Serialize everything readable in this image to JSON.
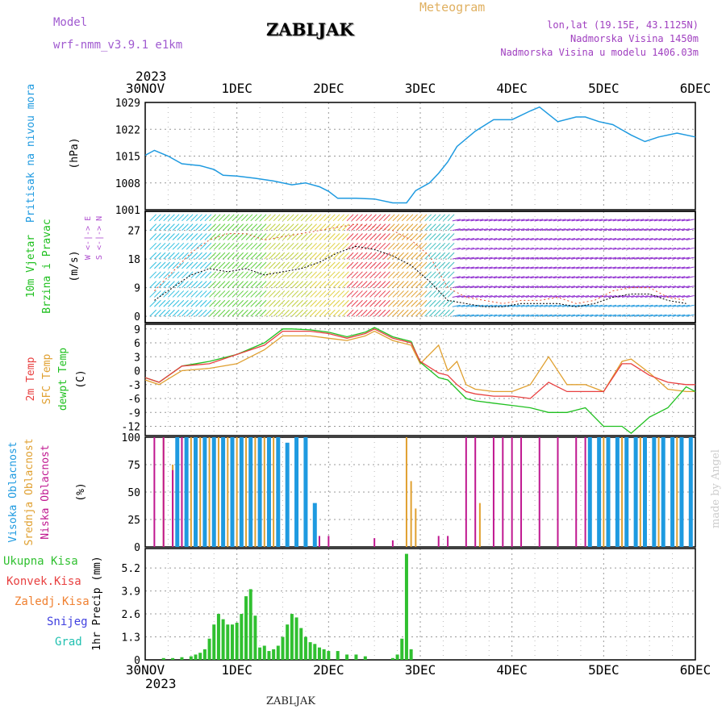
{
  "header": {
    "model_label": "Model",
    "model_version": "wrf-nmm_v3.9.1  e1km",
    "title": "ZABLJAK",
    "meteogram": "Meteogram",
    "lonlat": "lon,lat (19.15E, 43.1125N)",
    "elevation": "Nadmorska Visina 1450m",
    "model_elevation": "Nadmorska Visina u modelu 1406.03m"
  },
  "footer": {
    "station": "ZABLJAK",
    "credit": "made by Angel"
  },
  "time_axis": {
    "year": "2023",
    "labels": [
      "30NOV",
      "1DEC",
      "2DEC",
      "3DEC",
      "4DEC",
      "5DEC",
      "6DEC"
    ],
    "range_days": [
      0,
      6
    ]
  },
  "colors": {
    "pressure": "#1e9ae0",
    "temp_2m": "#e84040",
    "temp_sfc": "#e0a030",
    "dewpoint": "#20c020",
    "cloud_high": "#1e9ae0",
    "cloud_mid": "#e0a030",
    "cloud_low": "#c01890",
    "precip_total": "#30c030",
    "gust": "#e05030"
  },
  "panels": {
    "pressure": {
      "ylabel1": "Pritisak na nivou mora",
      "ylabel2": "(hPa)"
    },
    "wind": {
      "ylabel1": "10m Vjetar",
      "ylabel1b": "Brzina i Pravac",
      "ylabel2": "(m/s)",
      "compass": "W <-|-> E",
      "compass2": "S <-|-> N"
    },
    "temp": {
      "ylabel1": "2m Temp",
      "ylabel1b": "SFC Temp",
      "ylabel1c": "dewpt Temp",
      "ylabel2": "(C)"
    },
    "cloud": {
      "ylabel1": "Visoka Oblacnost",
      "ylabel1b": "Srednja Oblacnost",
      "ylabel1c": "Niska Oblacnost",
      "ylabel2": "(%)"
    },
    "precip": {
      "legend": [
        "Ukupna Kisa",
        "Konvek.Kisa",
        "Zaledj.Kisa",
        "Snijeg",
        "Grad"
      ],
      "ylabel2": "1hr Precip (mm)"
    }
  },
  "chart_data": [
    {
      "type": "line",
      "name": "pressure",
      "ylim": [
        1001,
        1029
      ],
      "yticks": [
        1001,
        1008,
        1015,
        1022,
        1029
      ],
      "x": [
        0,
        0.1,
        0.15,
        0.25,
        0.4,
        0.6,
        0.75,
        0.85,
        1.0,
        1.2,
        1.4,
        1.6,
        1.75,
        1.9,
        2.0,
        2.1,
        2.3,
        2.5,
        2.7,
        2.85,
        2.95,
        3.1,
        3.2,
        3.3,
        3.4,
        3.6,
        3.8,
        4.0,
        4.2,
        4.3,
        4.5,
        4.7,
        4.8,
        4.95,
        5.1,
        5.3,
        5.45,
        5.6,
        5.8,
        6.0
      ],
      "values": [
        1015.2,
        1016.5,
        1016.0,
        1015.0,
        1013.0,
        1012.5,
        1011.5,
        1010.0,
        1009.8,
        1009.2,
        1008.5,
        1007.5,
        1008.0,
        1007.0,
        1005.8,
        1004.0,
        1004.0,
        1003.8,
        1002.8,
        1002.8,
        1006.0,
        1008.0,
        1010.5,
        1013.5,
        1017.5,
        1021.5,
        1024.5,
        1024.5,
        1026.8,
        1027.8,
        1024.0,
        1025.2,
        1025.2,
        1024.0,
        1023.2,
        1020.5,
        1018.8,
        1020.0,
        1021.0,
        1020.0
      ]
    },
    {
      "type": "line",
      "name": "wind",
      "ylim": [
        -2,
        33
      ],
      "yticks": [
        0,
        9,
        18,
        27
      ],
      "series": [
        {
          "x": [
            0.1,
            0.3,
            0.5,
            0.7,
            0.9,
            1.1,
            1.3,
            1.5,
            1.7,
            1.9,
            2.1,
            2.3,
            2.5,
            2.7,
            2.9,
            3.1,
            3.3,
            3.5,
            3.7,
            3.9,
            4.1,
            4.3,
            4.5,
            4.7,
            4.9,
            5.1,
            5.3,
            5.5,
            5.7,
            5.9
          ],
          "values": [
            5,
            9,
            13,
            15,
            14,
            15,
            13,
            14,
            15,
            17,
            20,
            22,
            21,
            19,
            16,
            11,
            5,
            4,
            3,
            3,
            4,
            4,
            4,
            3,
            4,
            6,
            7,
            7,
            5,
            4
          ]
        },
        {
          "x": [
            0.1,
            0.3,
            0.5,
            0.7,
            0.9,
            1.1,
            1.3,
            1.5,
            1.7,
            1.9,
            2.1,
            2.3,
            2.5,
            2.7,
            2.9,
            3.1,
            3.3,
            3.5,
            3.7,
            3.9,
            4.1,
            4.3,
            4.5,
            4.7,
            4.9,
            5.1,
            5.3,
            5.5,
            5.7,
            5.9
          ],
          "values": [
            8,
            14,
            20,
            24,
            26,
            26,
            24,
            25,
            26,
            27,
            28,
            29,
            28,
            27,
            24,
            19,
            9,
            6,
            5,
            4,
            5,
            5,
            6,
            4,
            5,
            8,
            9,
            9,
            6,
            5
          ]
        }
      ]
    },
    {
      "type": "line",
      "name": "temperature",
      "ylim": [
        -14,
        10
      ],
      "yticks": [
        9,
        6,
        3,
        0,
        -3,
        -6,
        -9,
        -12
      ],
      "series": [
        {
          "x": [
            0,
            0.15,
            0.4,
            0.7,
            1.0,
            1.3,
            1.5,
            1.6,
            1.8,
            2.0,
            2.2,
            2.4,
            2.5,
            2.7,
            2.9,
            3.0,
            3.2,
            3.3,
            3.4,
            3.5,
            3.6,
            3.8,
            4.0,
            4.2,
            4.4,
            4.6,
            4.8,
            5.0,
            5.2,
            5.3,
            5.5,
            5.7,
            5.9,
            6.0
          ],
          "values": [
            -1.5,
            -2.5,
            1,
            1.5,
            3.5,
            5.5,
            8.5,
            8.5,
            8.5,
            8,
            7,
            8,
            9,
            7,
            6,
            2,
            -0.5,
            -1,
            -3,
            -4.5,
            -5,
            -5.5,
            -5.5,
            -6,
            -2.5,
            -4.5,
            -4.5,
            -4.5,
            1.5,
            1.5,
            -1,
            -2.5,
            -3,
            -3
          ]
        },
        {
          "x": [
            0,
            0.15,
            0.4,
            0.7,
            1.0,
            1.3,
            1.5,
            1.6,
            1.8,
            2.0,
            2.2,
            2.4,
            2.5,
            2.7,
            2.9,
            3.0,
            3.2,
            3.3,
            3.4,
            3.5,
            3.6,
            3.8,
            4.0,
            4.2,
            4.4,
            4.6,
            4.8,
            5.0,
            5.2,
            5.3,
            5.5,
            5.7,
            5.9,
            6.0
          ],
          "values": [
            -2,
            -3,
            0,
            0.5,
            1.5,
            4.5,
            7.5,
            7.5,
            7.5,
            7,
            6.5,
            7.5,
            8.5,
            6.5,
            5.5,
            1.5,
            5.5,
            0,
            2,
            -3,
            -4,
            -4.5,
            -4.5,
            -3,
            3,
            -3,
            -3,
            -4.5,
            2,
            2.5,
            -0.5,
            -4,
            -4.5,
            -4.5
          ]
        },
        {
          "x": [
            0,
            0.15,
            0.4,
            0.7,
            1.0,
            1.3,
            1.5,
            1.6,
            1.8,
            2.0,
            2.2,
            2.4,
            2.5,
            2.7,
            2.9,
            3.0,
            3.2,
            3.3,
            3.4,
            3.5,
            3.6,
            3.8,
            4.0,
            4.2,
            4.4,
            4.6,
            4.8,
            5.0,
            5.2,
            5.3,
            5.5,
            5.7,
            5.9,
            6.0
          ],
          "values": [
            -1.5,
            -2.5,
            1,
            2,
            3.5,
            6,
            9,
            9,
            8.8,
            8.3,
            7.3,
            8.3,
            9.3,
            7.3,
            6.3,
            1.8,
            -1.5,
            -2,
            -4,
            -6,
            -6.5,
            -7,
            -7.5,
            -8,
            -9,
            -9,
            -8,
            -12,
            -12,
            -13.5,
            -10,
            -8,
            -3.5,
            -4.5
          ]
        }
      ]
    },
    {
      "type": "bar",
      "name": "cloud",
      "ylim": [
        0,
        100
      ],
      "yticks": [
        0,
        25,
        50,
        75,
        100
      ],
      "series": [
        {
          "x": [
            0.35,
            0.45,
            0.55,
            0.65,
            0.75,
            0.85,
            0.95,
            1.05,
            1.15,
            1.25,
            1.35,
            1.45,
            1.55,
            1.65,
            1.75,
            1.85,
            4.85,
            4.95,
            5.05,
            5.15,
            5.25,
            5.35,
            5.45,
            5.55,
            5.65,
            5.75,
            5.85,
            5.95
          ],
          "values": [
            100,
            100,
            100,
            100,
            100,
            100,
            100,
            100,
            100,
            100,
            100,
            100,
            95,
            100,
            100,
            40,
            100,
            100,
            100,
            100,
            100,
            100,
            100,
            100,
            100,
            100,
            100,
            100
          ]
        },
        {
          "x": [
            0.2,
            0.3,
            0.4,
            0.5,
            0.6,
            0.7,
            0.8,
            0.9,
            1.0,
            1.1,
            1.2,
            1.3,
            1.4,
            2.85,
            2.9,
            2.95,
            3.65,
            5.0,
            5.2,
            5.4,
            5.6,
            5.8
          ],
          "values": [
            100,
            75,
            100,
            100,
            100,
            100,
            100,
            100,
            100,
            100,
            100,
            100,
            100,
            100,
            60,
            35,
            40,
            100,
            100,
            100,
            100,
            100
          ]
        },
        {
          "x": [
            0.1,
            0.2,
            0.3,
            0.4,
            1.9,
            2.0,
            2.5,
            2.7,
            3.2,
            3.3,
            3.5,
            3.6,
            3.8,
            3.9,
            4.0,
            4.1,
            4.3,
            4.5,
            4.7,
            4.8
          ],
          "values": [
            100,
            100,
            70,
            100,
            10,
            10,
            8,
            6,
            10,
            10,
            100,
            100,
            100,
            100,
            100,
            100,
            100,
            100,
            100,
            100
          ]
        }
      ]
    },
    {
      "type": "bar",
      "name": "precipitation",
      "ylim": [
        0,
        6.3
      ],
      "yticks": [
        0,
        1.3,
        2.6,
        3.9,
        5.2
      ],
      "x": [
        0.2,
        0.3,
        0.4,
        0.5,
        0.55,
        0.6,
        0.65,
        0.7,
        0.75,
        0.8,
        0.85,
        0.9,
        0.95,
        1.0,
        1.05,
        1.1,
        1.15,
        1.2,
        1.25,
        1.3,
        1.35,
        1.4,
        1.45,
        1.5,
        1.55,
        1.6,
        1.65,
        1.7,
        1.75,
        1.8,
        1.85,
        1.9,
        1.95,
        2.0,
        2.1,
        2.2,
        2.3,
        2.4,
        2.7,
        2.75,
        2.8,
        2.85,
        2.9
      ],
      "values": [
        0.1,
        0.1,
        0.15,
        0.2,
        0.3,
        0.4,
        0.6,
        1.2,
        2.0,
        2.6,
        2.3,
        2.0,
        2.0,
        2.1,
        2.6,
        3.6,
        4.0,
        2.5,
        0.7,
        0.8,
        0.5,
        0.6,
        0.8,
        1.3,
        2.0,
        2.6,
        2.4,
        1.8,
        1.3,
        1.0,
        0.9,
        0.7,
        0.6,
        0.5,
        0.5,
        0.3,
        0.3,
        0.2,
        0.1,
        0.3,
        1.2,
        6.0,
        0.6
      ]
    }
  ]
}
